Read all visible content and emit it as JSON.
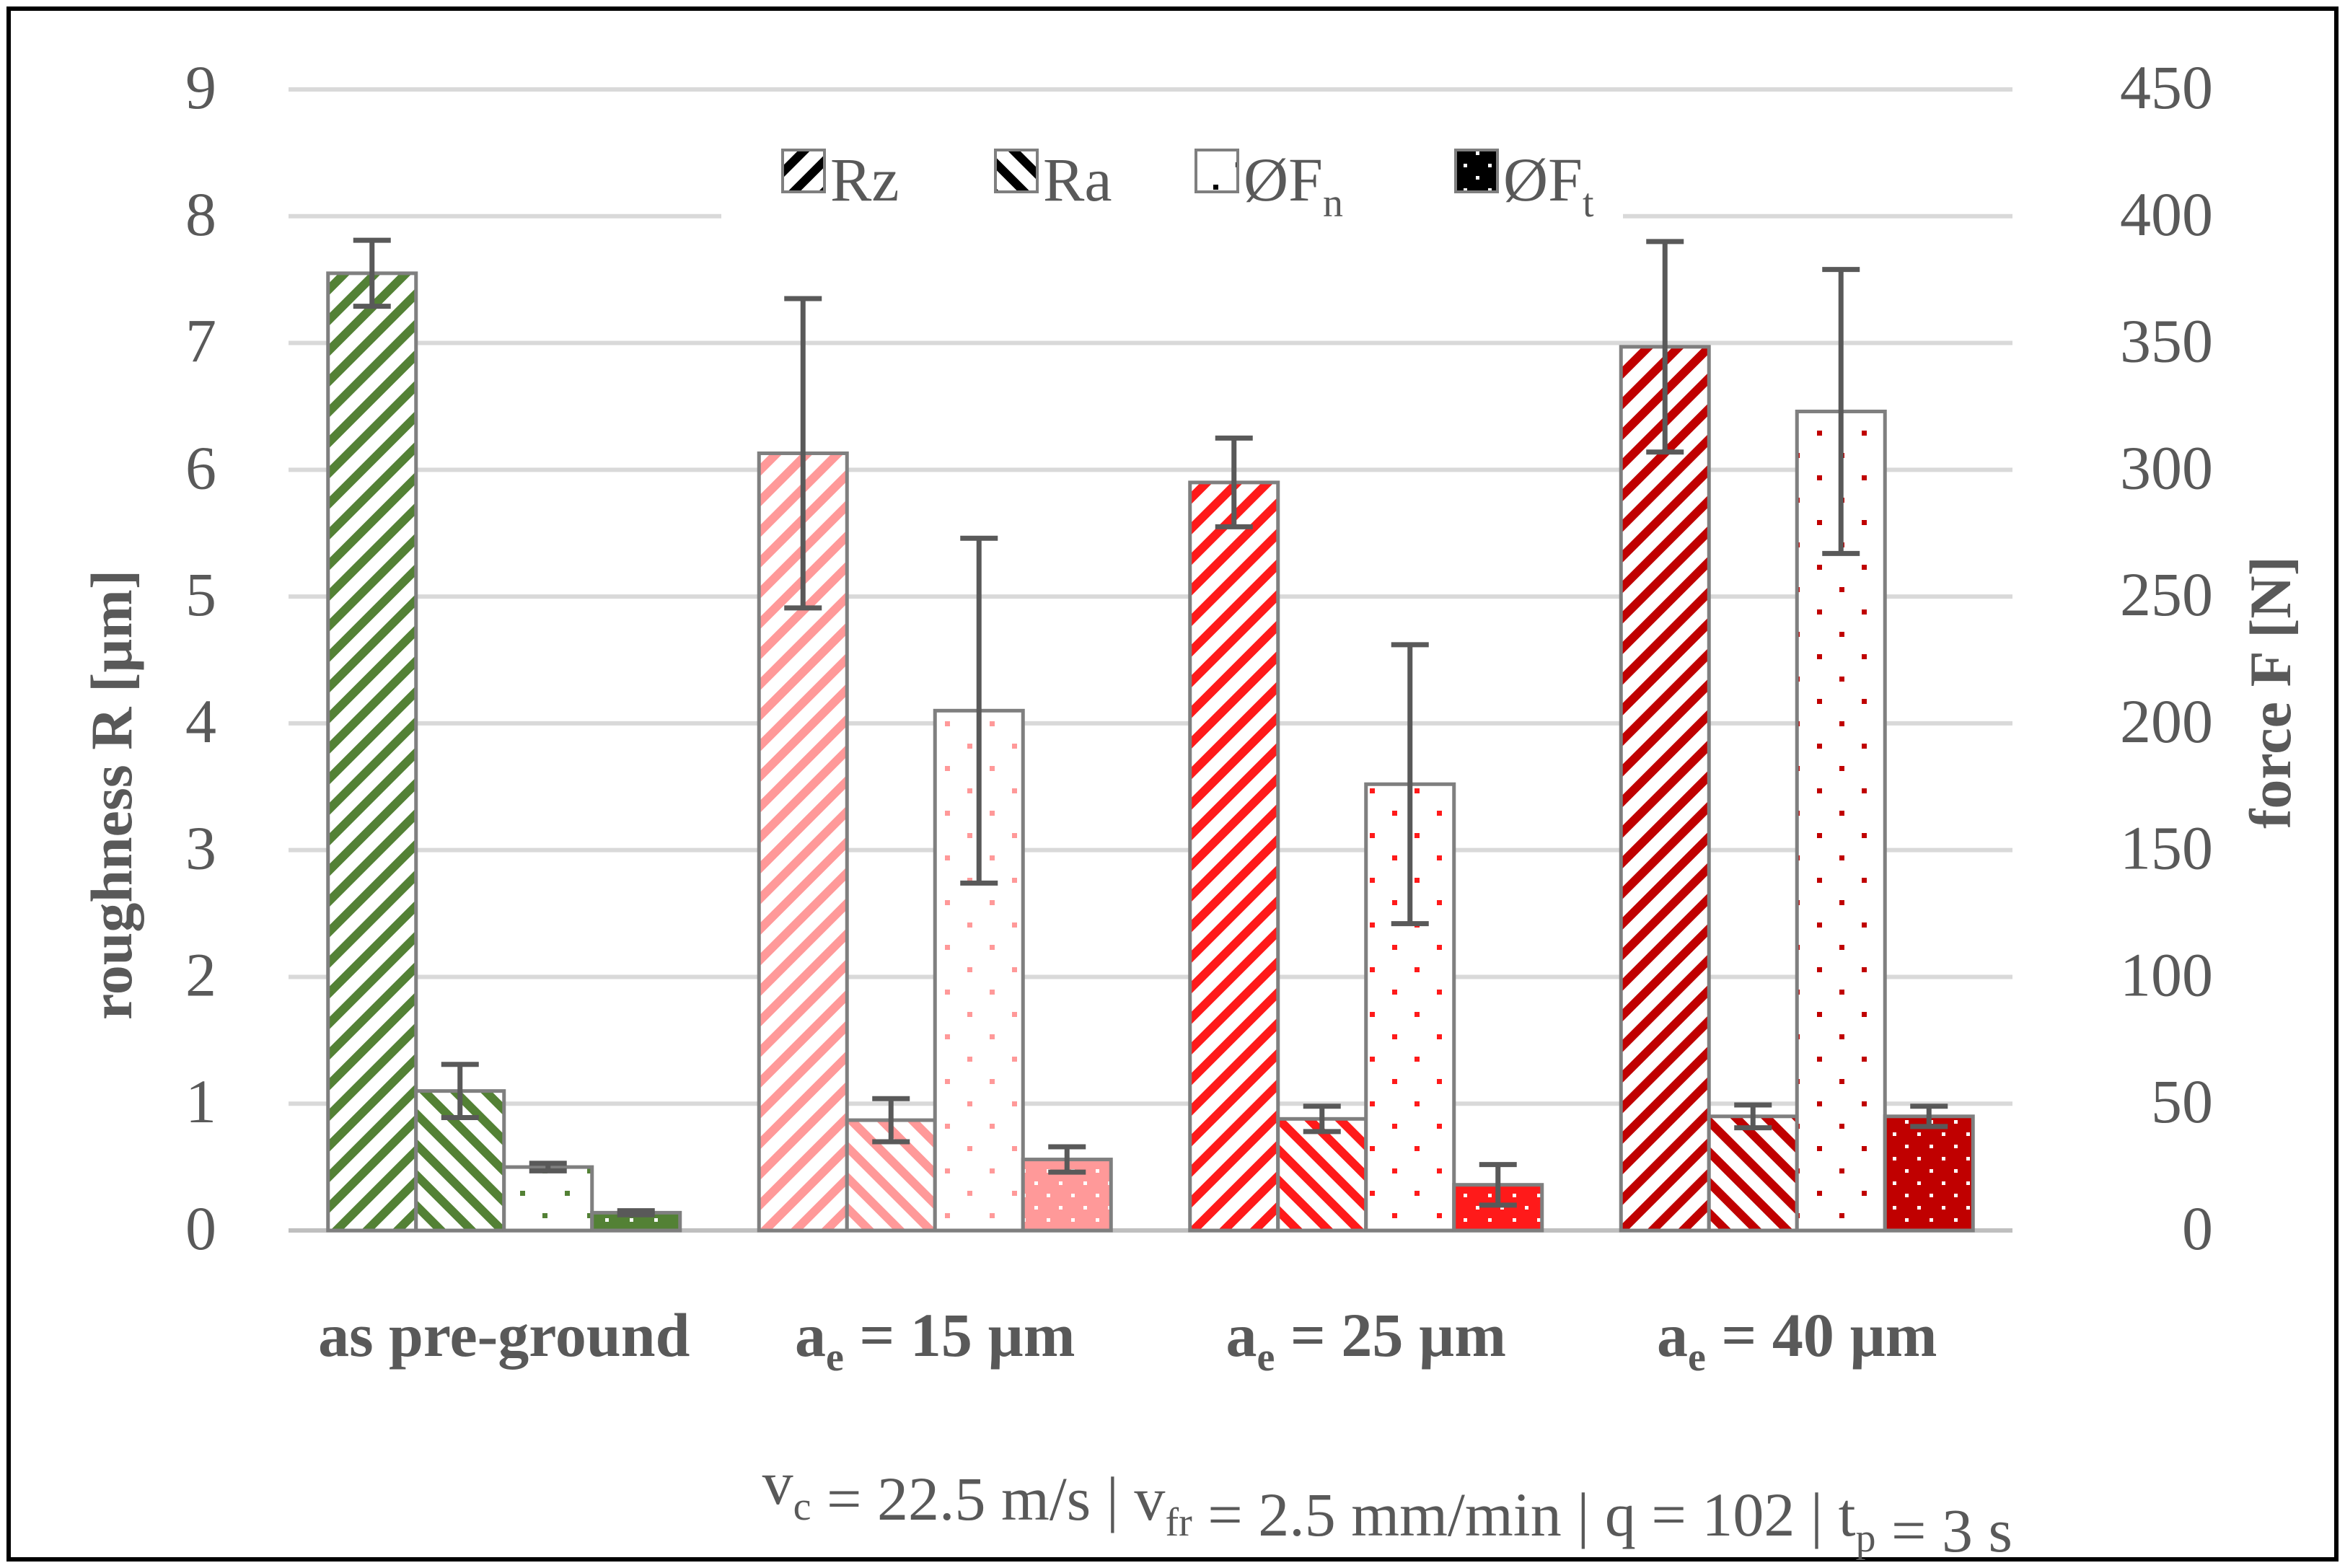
{
  "chart_data": {
    "type": "bar",
    "categories": [
      "as pre-ground",
      "a_e = 15 µm",
      "a_e = 25 µm",
      "a_e = 40 µm"
    ],
    "category_labels": [
      {
        "main": "as pre-ground",
        "sub": "",
        "rest": ""
      },
      {
        "main": "a",
        "sub": "e",
        "rest": " = 15 µm"
      },
      {
        "main": "a",
        "sub": "e",
        "rest": " = 25 µm"
      },
      {
        "main": "a",
        "sub": "e",
        "rest": " = 40 µm"
      }
    ],
    "category_colors": [
      "#538135",
      "#ff9999",
      "#ff1a1a",
      "#c00000"
    ],
    "series": [
      {
        "name": "Rz",
        "label_main": "Rz",
        "label_sub": "",
        "axis": "left",
        "pattern": "diagonal",
        "values": [
          7.55,
          6.13,
          5.9,
          6.97
        ],
        "error": [
          0.26,
          1.22,
          0.35,
          0.83
        ]
      },
      {
        "name": "Ra",
        "label_main": "Ra",
        "label_sub": "",
        "axis": "left",
        "pattern": "diagonal-reverse",
        "values": [
          1.1,
          0.87,
          0.88,
          0.9
        ],
        "error": [
          0.21,
          0.17,
          0.1,
          0.09
        ]
      },
      {
        "name": "ØFn",
        "label_main": "ØF",
        "label_sub": "n",
        "axis": "right",
        "pattern": "dots",
        "values": [
          25,
          205,
          176,
          323
        ],
        "error": [
          1.5,
          68,
          55,
          56
        ]
      },
      {
        "name": "ØFt",
        "label_main": "ØF",
        "label_sub": "t",
        "axis": "right",
        "pattern": "dense",
        "values": [
          7,
          28,
          18,
          45
        ],
        "error": [
          0.8,
          5,
          8,
          4
        ]
      }
    ],
    "y_left": {
      "label": "roughness R [µm]",
      "min": 0,
      "max": 9,
      "ticks": [
        "0",
        "1",
        "2",
        "3",
        "4",
        "5",
        "6",
        "7",
        "8",
        "9"
      ]
    },
    "y_right": {
      "label": "force F [N]",
      "min": 0,
      "max": 450,
      "ticks": [
        "0",
        "50",
        "100",
        "150",
        "200",
        "250",
        "300",
        "350",
        "400",
        "450"
      ]
    },
    "grid": true,
    "legend": "top"
  },
  "footnote": {
    "parts": [
      {
        "t": "v",
        "s": "c"
      },
      {
        "t": " = 22.5 m/s | v",
        "s": "fr"
      },
      {
        "t": " = 2.5 mm/min | q = 102 | t",
        "s": "p"
      },
      {
        "t": " = 3 s",
        "s": ""
      }
    ]
  }
}
